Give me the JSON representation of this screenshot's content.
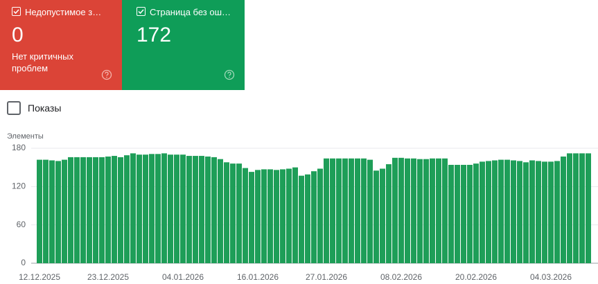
{
  "cards": [
    {
      "label": "Недопустимое з…",
      "value": 0,
      "description": "Нет критичных проблем",
      "color": "#db4437"
    },
    {
      "label": "Страница без ош…",
      "value": 172,
      "color": "#0f9d58"
    }
  ],
  "checkbox": {
    "label": "Показы"
  },
  "chart_data": {
    "type": "bar",
    "ylabel": "Элементы",
    "color": "#1e9e58",
    "grid": true,
    "ylim": [
      0,
      180
    ],
    "yticks": [
      0,
      60,
      120,
      180
    ],
    "categories": [
      "12.12.2025",
      null,
      null,
      null,
      null,
      null,
      null,
      null,
      null,
      null,
      null,
      "23.12.2025",
      null,
      null,
      null,
      null,
      null,
      null,
      null,
      null,
      null,
      null,
      null,
      "04.01.2026",
      null,
      null,
      null,
      null,
      null,
      null,
      null,
      null,
      null,
      null,
      null,
      "16.01.2026",
      null,
      null,
      null,
      null,
      null,
      null,
      null,
      null,
      null,
      null,
      "27.01.2026",
      null,
      null,
      null,
      null,
      null,
      null,
      null,
      null,
      null,
      null,
      null,
      "08.02.2026",
      null,
      null,
      null,
      null,
      null,
      null,
      null,
      null,
      null,
      null,
      null,
      "20.02.2026",
      null,
      null,
      null,
      null,
      null,
      null,
      null,
      null,
      null,
      null,
      null,
      "04.03.2026",
      null,
      null,
      null,
      null,
      null,
      null
    ],
    "values": [
      162,
      162,
      161,
      160,
      162,
      166,
      166,
      166,
      166,
      166,
      166,
      167,
      168,
      166,
      169,
      172,
      170,
      170,
      171,
      171,
      172,
      170,
      170,
      170,
      168,
      168,
      168,
      167,
      166,
      163,
      158,
      156,
      156,
      149,
      143,
      146,
      147,
      147,
      146,
      147,
      148,
      150,
      137,
      139,
      144,
      148,
      164,
      164,
      164,
      164,
      164,
      164,
      164,
      162,
      145,
      148,
      155,
      165,
      165,
      164,
      164,
      163,
      163,
      164,
      164,
      164,
      154,
      154,
      154,
      154,
      156,
      159,
      160,
      161,
      162,
      162,
      161,
      160,
      158,
      161,
      160,
      159,
      159,
      160,
      167,
      172,
      172,
      172,
      172
    ]
  }
}
